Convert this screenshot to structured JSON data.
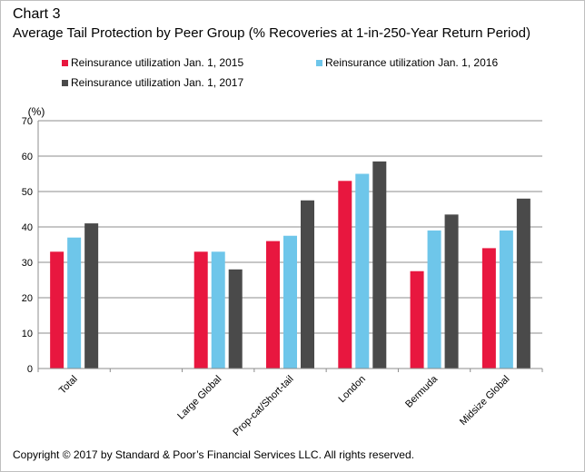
{
  "header": {
    "chart_number": "Chart 3",
    "title": "Average Tail Protection by Peer Group (% Recoveries at 1-in-250-Year Return Period)"
  },
  "footer": {
    "copyright": "Copyright © 2017 by Standard & Poor’s Financial Services LLC. All rights reserved."
  },
  "chart_data": {
    "type": "bar",
    "title": "Average Tail Protection by Peer Group (% Recoveries at 1-in-250-Year Return Period)",
    "ylabel": "(%)",
    "xlabel": "",
    "ylim": [
      0,
      70
    ],
    "yticks": [
      0,
      10,
      20,
      30,
      40,
      50,
      60,
      70
    ],
    "grid": true,
    "legend_position": "top",
    "categories": [
      "Total",
      "",
      "Large Global",
      "Prop-cat/Short-tail",
      "London",
      "Bermuda",
      "Midsize Global"
    ],
    "series": [
      {
        "name": "Reinsurance utilization Jan. 1, 2015",
        "color": "#e8173f",
        "values": [
          33,
          null,
          33,
          36,
          53,
          27.5,
          34
        ]
      },
      {
        "name": "Reinsurance utilization Jan. 1, 2016",
        "color": "#6ec6ea",
        "values": [
          37,
          null,
          33,
          37.5,
          55,
          39,
          39
        ]
      },
      {
        "name": "Reinsurance utilization Jan. 1, 2017",
        "color": "#4a4a4a",
        "values": [
          41,
          null,
          28,
          47.5,
          58.5,
          43.5,
          48
        ]
      }
    ]
  }
}
